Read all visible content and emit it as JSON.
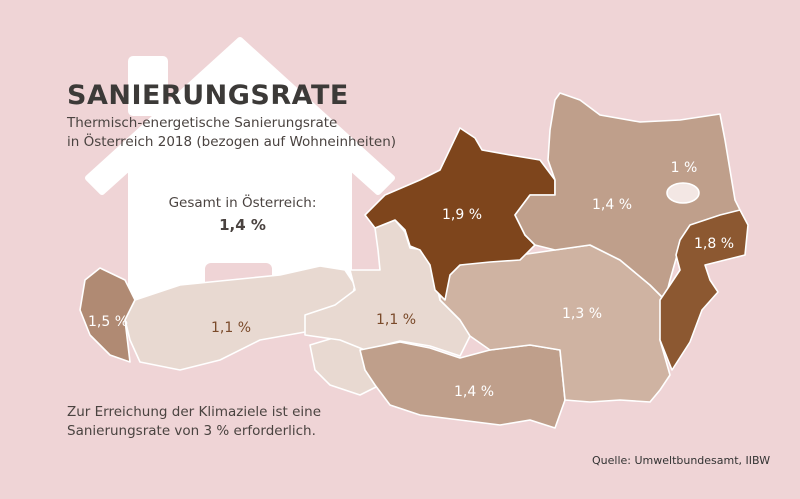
{
  "title": "SANIERUNGSRATE",
  "subtitle_line1": "Thermisch-energetische Sanierungsrate",
  "subtitle_line2": "in Österreich 2018 (bezogen auf Wohneinheiten)",
  "total_label": "Gesamt in Österreich:",
  "total_value": "1,4 %",
  "note_line1": "Zur Erreichung der Klimaziele ist eine",
  "note_line2": "Sanierungsrate von 3 % erforderlich.",
  "source": "Quelle: Umweltbundesamt, IIBW",
  "icon": "house-icon",
  "regions": [
    {
      "name": "Vorarlberg",
      "value": "1,5 %",
      "color": "#b08a73"
    },
    {
      "name": "Tirol",
      "value": "1,1 %",
      "color": "#e8d9d1"
    },
    {
      "name": "Salzburg",
      "value": "1,1 %",
      "color": "#e8d9d1"
    },
    {
      "name": "Oberösterreich",
      "value": "1,9 %",
      "color": "#7e451c"
    },
    {
      "name": "Niederösterreich",
      "value": "1,4 %",
      "color": "#bf9f8b"
    },
    {
      "name": "Wien",
      "value": "1 %",
      "color": "#f3e7e4"
    },
    {
      "name": "Burgenland",
      "value": "1,8 %",
      "color": "#8c5831"
    },
    {
      "name": "Steiermark",
      "value": "1,3 %",
      "color": "#cfb3a2"
    },
    {
      "name": "Kärnten",
      "value": "1,4 %",
      "color": "#bf9f8b"
    }
  ]
}
